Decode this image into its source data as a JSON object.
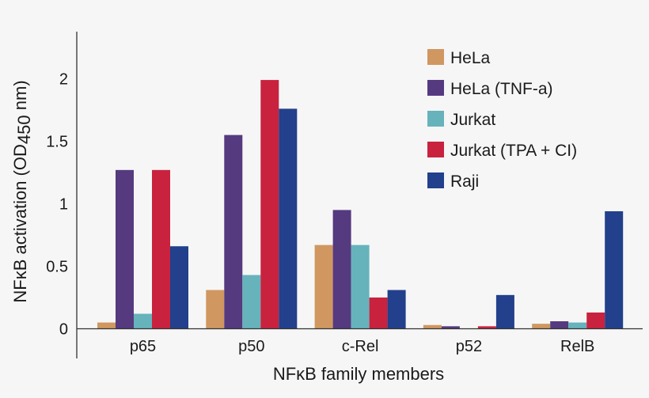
{
  "chart_data": {
    "type": "bar",
    "title": "",
    "xlabel": "NFκB family members",
    "ylabel": {
      "main": "NFκB activation (OD",
      "subscript": "450",
      "suffix": " nm)"
    },
    "ylim": [
      0,
      2.3
    ],
    "yticks": [
      "0",
      "0.5",
      "1",
      "1.5",
      "2"
    ],
    "ytick_values": [
      0,
      0.5,
      1,
      1.5,
      2
    ],
    "grid": false,
    "legend_position": "top-right",
    "categories": [
      "p65",
      "p50",
      "c-Rel",
      "p52",
      "RelB"
    ],
    "series": [
      {
        "name": "HeLa",
        "color": "#d09760",
        "values": [
          0.05,
          0.31,
          0.67,
          0.03,
          0.04
        ]
      },
      {
        "name": "HeLa (TNF-a)",
        "color": "#553a80",
        "values": [
          1.27,
          1.55,
          0.95,
          0.02,
          0.06
        ]
      },
      {
        "name": "Jurkat",
        "color": "#66b3bc",
        "values": [
          0.12,
          0.43,
          0.67,
          0.0,
          0.05
        ]
      },
      {
        "name": "Jurkat (TPA + CI)",
        "color": "#c8223f",
        "values": [
          1.27,
          1.99,
          0.25,
          0.02,
          0.13
        ]
      },
      {
        "name": "Raji",
        "color": "#22408b",
        "values": [
          0.66,
          1.76,
          0.31,
          0.27,
          0.94
        ]
      }
    ]
  }
}
